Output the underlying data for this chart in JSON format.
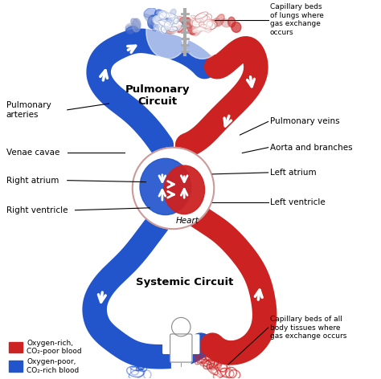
{
  "background_color": "#ffffff",
  "fig_width": 4.74,
  "fig_height": 4.72,
  "red_color": "#cc2222",
  "blue_color": "#2255cc",
  "pulmonary_circuit_label": "Pulmonary\nCircuit",
  "systemic_circuit_label": "Systemic Circuit",
  "labels": {
    "capillary_lungs": "Capillary beds\nof lungs where\ngas exchange\noccurs",
    "pulmonary_arteries": "Pulmonary\narteries",
    "venae_cavae": "Venae cavae",
    "right_atrium": "Right atrium",
    "right_ventricle": "Right ventricle",
    "pulmonary_veins": "Pulmonary veins",
    "aorta": "Aorta and branches",
    "left_atrium": "Left atrium",
    "left_ventricle": "Left ventricle",
    "heart": "Heart",
    "capillary_body": "Capillary beds of all\nbody tissues where\ngas exchange occurs",
    "oxygen_rich": "Oxygen-rich,\nCO₂-poor blood",
    "oxygen_poor": "Oxygen-poor,\nCO₂-rich blood"
  }
}
